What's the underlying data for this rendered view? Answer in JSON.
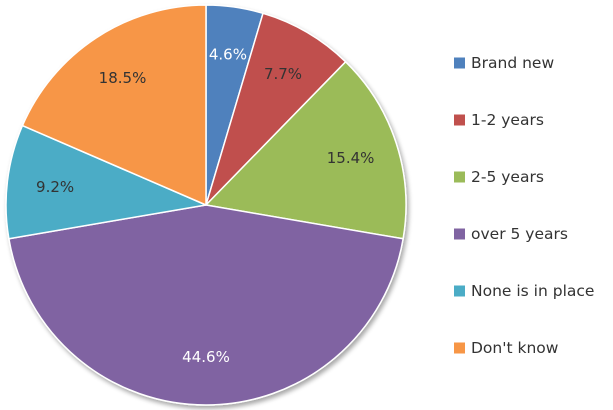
{
  "chart_data": {
    "type": "pie",
    "title": "",
    "start_angle_deg": 0,
    "direction": "clockwise",
    "slices": [
      {
        "label": "Brand new",
        "value": 4.6,
        "value_label": "4.6%",
        "color": "#4F81BD",
        "label_color": "#ffffff"
      },
      {
        "label": "1-2 years",
        "value": 7.7,
        "value_label": "7.7%",
        "color": "#C0504D",
        "label_color": "#333333"
      },
      {
        "label": "2-5 years",
        "value": 15.4,
        "value_label": "15.4%",
        "color": "#9BBB59",
        "label_color": "#333333"
      },
      {
        "label": "over 5 years",
        "value": 44.6,
        "value_label": "44.6%",
        "color": "#8064A2",
        "label_color": "#ffffff"
      },
      {
        "label": "None is in place",
        "value": 9.2,
        "value_label": "9.2%",
        "color": "#4BACC6",
        "label_color": "#333333"
      },
      {
        "label": "Don't know",
        "value": 18.5,
        "value_label": "18.5%",
        "color": "#F79646",
        "label_color": "#333333"
      }
    ],
    "legend": {
      "placement": "right",
      "entries": [
        "Brand new",
        "1-2 years",
        "2-5 years",
        "over 5 years",
        "None is in place",
        "Don't know"
      ]
    }
  }
}
